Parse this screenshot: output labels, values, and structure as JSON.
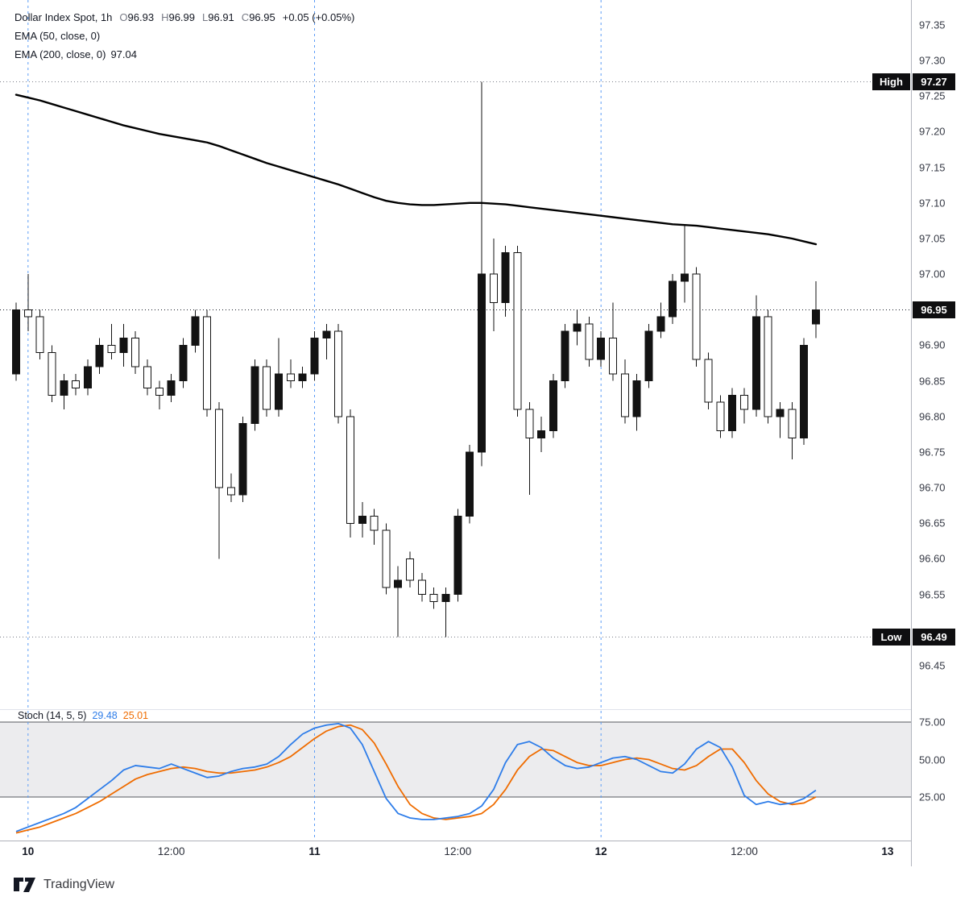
{
  "legend": {
    "title": "Dollar Index Spot, 1h",
    "ohlc": {
      "o_label": "O",
      "o_value": "96.93",
      "h_label": "H",
      "h_value": "96.99",
      "l_label": "L",
      "l_value": "96.91",
      "c_label": "C",
      "c_value": "96.95",
      "change": "+0.05 (+0.05%)"
    },
    "ema50_label": "EMA (50, close, 0)",
    "ema200_label": "EMA (200, close, 0)",
    "ema200_value": "97.04"
  },
  "price_axis": {
    "ticks": [
      "97.35",
      "97.30",
      "97.25",
      "97.20",
      "97.15",
      "97.10",
      "97.05",
      "97.00",
      "96.90",
      "96.85",
      "96.80",
      "96.75",
      "96.70",
      "96.65",
      "96.60",
      "96.55",
      "96.45"
    ],
    "high_label": "High",
    "high_value": "97.27",
    "last_value": "96.95",
    "low_label": "Low",
    "low_value": "96.49"
  },
  "stoch_legend": {
    "label": "Stoch (14, 5, 5)",
    "k_value": "29.48",
    "d_value": "25.01"
  },
  "stoch_axis": {
    "ticks": [
      "75.00",
      "50.00",
      "25.00"
    ]
  },
  "time_axis": {
    "labels": [
      {
        "text": "10",
        "index": 1,
        "major": true
      },
      {
        "text": "12:00",
        "index": 13,
        "major": false
      },
      {
        "text": "11",
        "index": 25,
        "major": true
      },
      {
        "text": "12:00",
        "index": 37,
        "major": false
      },
      {
        "text": "12",
        "index": 49,
        "major": true
      },
      {
        "text": "12:00",
        "index": 61,
        "major": false
      },
      {
        "text": "13",
        "index": 73,
        "major": true
      }
    ]
  },
  "footer": {
    "brand": "TradingView"
  },
  "chart_data": {
    "type": "candlestick",
    "title": "Dollar Index Spot, 1h",
    "symbol": "Dollar Index Spot",
    "interval": "1h",
    "last": 96.95,
    "high": 97.27,
    "low": 96.49,
    "open": 96.93,
    "close": 96.95,
    "change": "+0.05 (+0.05%)",
    "visible_price_range": [
      96.42,
      97.37
    ],
    "overlays": [
      "EMA (50, close, 0)",
      "EMA (200, close, 0)"
    ],
    "ema200_last": 97.04,
    "colors": {
      "candle_up_fill": "#131313",
      "candle_down_fill": "#ffffff",
      "candle_stroke": "#131313",
      "ema_line": "#000000",
      "session_line": "#5b9cf6",
      "hl_dotted_line": "#787b86",
      "last_dotted_line": "#131722",
      "badge_bg": "#0e0e10",
      "stoch_band_fill": "#ececee",
      "stoch_band_border": "#55585e"
    },
    "session_break_indices": [
      1,
      25,
      49
    ],
    "candles": [
      [
        96.86,
        96.96,
        96.85,
        96.95
      ],
      [
        96.95,
        97.0,
        96.92,
        96.94
      ],
      [
        96.94,
        96.95,
        96.88,
        96.89
      ],
      [
        96.89,
        96.9,
        96.82,
        96.83
      ],
      [
        96.83,
        96.86,
        96.81,
        96.85
      ],
      [
        96.85,
        96.86,
        96.83,
        96.84
      ],
      [
        96.84,
        96.88,
        96.83,
        96.87
      ],
      [
        96.87,
        96.91,
        96.86,
        96.9
      ],
      [
        96.9,
        96.93,
        96.88,
        96.89
      ],
      [
        96.89,
        96.93,
        96.87,
        96.91
      ],
      [
        96.91,
        96.92,
        96.86,
        96.87
      ],
      [
        96.87,
        96.88,
        96.83,
        96.84
      ],
      [
        96.84,
        96.85,
        96.81,
        96.83
      ],
      [
        96.83,
        96.86,
        96.82,
        96.85
      ],
      [
        96.85,
        96.91,
        96.84,
        96.9
      ],
      [
        96.9,
        96.95,
        96.89,
        96.94
      ],
      [
        96.94,
        96.95,
        96.8,
        96.81
      ],
      [
        96.81,
        96.82,
        96.6,
        96.7
      ],
      [
        96.7,
        96.72,
        96.68,
        96.69
      ],
      [
        96.69,
        96.8,
        96.68,
        96.79
      ],
      [
        96.79,
        96.88,
        96.78,
        96.87
      ],
      [
        96.87,
        96.88,
        96.8,
        96.81
      ],
      [
        96.81,
        96.91,
        96.8,
        96.86
      ],
      [
        96.86,
        96.88,
        96.84,
        96.85
      ],
      [
        96.85,
        96.87,
        96.84,
        96.86
      ],
      [
        96.86,
        96.92,
        96.85,
        96.91
      ],
      [
        96.91,
        96.93,
        96.88,
        96.92
      ],
      [
        96.92,
        96.93,
        96.79,
        96.8
      ],
      [
        96.8,
        96.81,
        96.63,
        96.65
      ],
      [
        96.65,
        96.68,
        96.63,
        96.66
      ],
      [
        96.66,
        96.67,
        96.62,
        96.64
      ],
      [
        96.64,
        96.65,
        96.55,
        96.56
      ],
      [
        96.56,
        96.59,
        96.49,
        96.57
      ],
      [
        96.6,
        96.61,
        96.56,
        96.57
      ],
      [
        96.57,
        96.58,
        96.54,
        96.55
      ],
      [
        96.55,
        96.56,
        96.53,
        96.54
      ],
      [
        96.54,
        96.56,
        96.49,
        96.55
      ],
      [
        96.55,
        96.67,
        96.54,
        96.66
      ],
      [
        96.66,
        96.76,
        96.65,
        96.75
      ],
      [
        96.75,
        97.27,
        96.73,
        97.0
      ],
      [
        97.0,
        97.05,
        96.92,
        96.96
      ],
      [
        96.96,
        97.04,
        96.94,
        97.03
      ],
      [
        97.03,
        97.04,
        96.8,
        96.81
      ],
      [
        96.81,
        96.82,
        96.69,
        96.77
      ],
      [
        96.77,
        96.8,
        96.75,
        96.78
      ],
      [
        96.78,
        96.86,
        96.77,
        96.85
      ],
      [
        96.85,
        96.93,
        96.84,
        96.92
      ],
      [
        96.92,
        96.95,
        96.9,
        96.93
      ],
      [
        96.93,
        96.94,
        96.87,
        96.88
      ],
      [
        96.88,
        96.92,
        96.87,
        96.91
      ],
      [
        96.91,
        96.96,
        96.85,
        96.86
      ],
      [
        96.86,
        96.88,
        96.79,
        96.8
      ],
      [
        96.8,
        96.86,
        96.78,
        96.85
      ],
      [
        96.85,
        96.93,
        96.84,
        96.92
      ],
      [
        96.92,
        96.96,
        96.91,
        96.94
      ],
      [
        96.94,
        97.0,
        96.93,
        96.99
      ],
      [
        96.99,
        97.07,
        96.96,
        97.0
      ],
      [
        97.0,
        97.01,
        96.87,
        96.88
      ],
      [
        96.88,
        96.89,
        96.81,
        96.82
      ],
      [
        96.82,
        96.83,
        96.77,
        96.78
      ],
      [
        96.78,
        96.84,
        96.77,
        96.83
      ],
      [
        96.83,
        96.84,
        96.79,
        96.81
      ],
      [
        96.81,
        96.97,
        96.8,
        96.94
      ],
      [
        96.94,
        96.95,
        96.79,
        96.8
      ],
      [
        96.8,
        96.82,
        96.77,
        96.81
      ],
      [
        96.81,
        96.82,
        96.74,
        96.77
      ],
      [
        96.77,
        96.91,
        96.76,
        96.9
      ],
      [
        96.93,
        96.99,
        96.91,
        96.95
      ]
    ],
    "ema200": [
      97.252,
      97.248,
      97.244,
      97.239,
      97.234,
      97.229,
      97.224,
      97.219,
      97.214,
      97.209,
      97.205,
      97.201,
      97.197,
      97.194,
      97.191,
      97.188,
      97.185,
      97.18,
      97.174,
      97.168,
      97.162,
      97.156,
      97.151,
      97.146,
      97.141,
      97.136,
      97.131,
      97.126,
      97.12,
      97.114,
      97.108,
      97.103,
      97.1,
      97.098,
      97.097,
      97.097,
      97.098,
      97.099,
      97.1,
      97.1,
      97.099,
      97.098,
      97.096,
      97.094,
      97.092,
      97.09,
      97.088,
      97.086,
      97.084,
      97.082,
      97.08,
      97.078,
      97.076,
      97.074,
      97.072,
      97.07,
      97.069,
      97.068,
      97.066,
      97.064,
      97.062,
      97.06,
      97.058,
      97.056,
      97.053,
      97.05,
      97.046,
      97.042
    ],
    "stochastic": {
      "label": "Stoch (14, 5, 5)",
      "k_last": 29.48,
      "d_last": 25.01,
      "levels": [
        75,
        50,
        25
      ],
      "k_color": "#2e7de9",
      "d_color": "#ef6c00",
      "k": [
        2,
        5,
        8,
        11,
        14,
        18,
        24,
        30,
        36,
        43,
        46,
        45,
        44,
        47,
        44,
        41,
        38,
        39,
        42,
        44,
        45,
        47,
        52,
        60,
        67,
        71,
        73,
        74,
        71,
        60,
        42,
        24,
        14,
        11,
        10,
        10,
        11,
        12,
        14,
        19,
        30,
        48,
        60,
        62,
        58,
        51,
        46,
        44,
        45,
        48,
        51,
        52,
        50,
        46,
        42,
        41,
        47,
        57,
        62,
        58,
        45,
        26,
        20,
        22,
        20,
        21,
        24,
        29.48
      ],
      "d": [
        1,
        3,
        5,
        8,
        11,
        14,
        18,
        22,
        27,
        32,
        37,
        40,
        42,
        44,
        45,
        44,
        42,
        41,
        41,
        42,
        43,
        45,
        48,
        52,
        58,
        64,
        69,
        72,
        73,
        70,
        61,
        47,
        32,
        20,
        14,
        11,
        10,
        11,
        12,
        14,
        20,
        30,
        43,
        52,
        57,
        56,
        52,
        48,
        46,
        46,
        48,
        50,
        51,
        50,
        47,
        44,
        43,
        46,
        52,
        57,
        57,
        48,
        36,
        27,
        22,
        20,
        21,
        25.01
      ]
    },
    "time_labels": [
      "10",
      "12:00",
      "11",
      "12:00",
      "12",
      "12:00",
      "13"
    ]
  }
}
